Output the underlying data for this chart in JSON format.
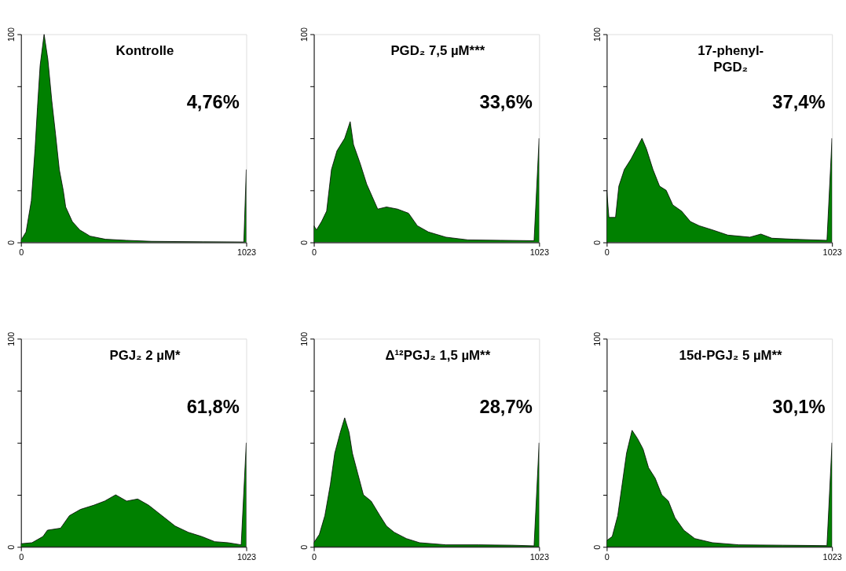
{
  "chart_data": [
    {
      "type": "area",
      "title": "Kontrolle",
      "annotations": [
        "4,76%"
      ],
      "color": "#008000",
      "x": [
        0,
        23,
        47,
        64,
        75,
        87,
        105,
        122,
        140,
        157,
        174,
        192,
        203,
        233,
        267,
        314,
        384,
        477,
        593,
        826,
        1012,
        1023
      ],
      "values": [
        1,
        5,
        20,
        45,
        65,
        85,
        100,
        88,
        68,
        52,
        35,
        25,
        17,
        10,
        6,
        3,
        1.5,
        1,
        0.5,
        0.3,
        0.2,
        35
      ],
      "xlim": [
        0,
        1023
      ],
      "xticks": [
        0,
        1023
      ],
      "ylim": [
        0,
        100
      ],
      "yticks": [
        0,
        {
          "value": 25,
          "label": null
        },
        {
          "value": 50,
          "label": null
        },
        {
          "value": 75,
          "label": null
        },
        100
      ]
    },
    {
      "type": "area",
      "title": "PGD₂ 7,5 µM***",
      "annotations": [
        "33,6%"
      ],
      "color": "#008000",
      "x": [
        0,
        12,
        35,
        58,
        80,
        105,
        140,
        165,
        180,
        210,
        240,
        265,
        290,
        330,
        380,
        430,
        470,
        520,
        600,
        700,
        850,
        1000,
        1023
      ],
      "values": [
        8,
        6,
        10,
        15,
        35,
        44,
        50,
        58,
        47,
        38,
        28,
        22,
        16,
        17,
        16,
        14,
        8,
        5,
        2.5,
        1.2,
        1,
        0.8,
        50
      ],
      "xlim": [
        0,
        1023
      ],
      "xticks": [
        0,
        1023
      ],
      "ylim": [
        0,
        100
      ],
      "yticks": [
        0,
        {
          "value": 25,
          "label": null
        },
        {
          "value": 50,
          "label": null
        },
        {
          "value": 75,
          "label": null
        },
        100
      ]
    },
    {
      "type": "area",
      "title": "17-phenyl-\nPGD₂",
      "annotations": [
        "37,4%"
      ],
      "color": "#008000",
      "x": [
        0,
        10,
        40,
        55,
        80,
        110,
        140,
        160,
        180,
        210,
        240,
        270,
        300,
        340,
        380,
        420,
        480,
        550,
        650,
        700,
        750,
        850,
        1000,
        1023
      ],
      "values": [
        25,
        12,
        12,
        27,
        35,
        40,
        46,
        50,
        45,
        35,
        27,
        25,
        18,
        15,
        10,
        8,
        6,
        3.5,
        2.5,
        4,
        2,
        1.5,
        1,
        50
      ],
      "xlim": [
        0,
        1023
      ],
      "xticks": [
        0,
        1023
      ],
      "ylim": [
        0,
        100
      ],
      "yticks": [
        0,
        {
          "value": 25,
          "label": null
        },
        {
          "value": 50,
          "label": null
        },
        {
          "value": 75,
          "label": null
        },
        100
      ]
    },
    {
      "type": "area",
      "title": "PGJ₂ 2 µM*",
      "annotations": [
        "61,8%"
      ],
      "color": "#008000",
      "x": [
        0,
        50,
        100,
        120,
        180,
        220,
        270,
        330,
        380,
        430,
        480,
        530,
        580,
        640,
        700,
        760,
        820,
        880,
        940,
        1000,
        1023
      ],
      "values": [
        1.5,
        2,
        5,
        8,
        9,
        15,
        18,
        20,
        22,
        25,
        22,
        23,
        20,
        15,
        10,
        7,
        5,
        2.5,
        2,
        1,
        50
      ],
      "xlim": [
        0,
        1023
      ],
      "xticks": [
        0,
        1023
      ],
      "ylim": [
        0,
        100
      ],
      "yticks": [
        0,
        {
          "value": 25,
          "label": null
        },
        {
          "value": 50,
          "label": null
        },
        {
          "value": 75,
          "label": null
        },
        100
      ]
    },
    {
      "type": "area",
      "title": "Δ¹²PGJ₂ 1,5 µM**",
      "annotations": [
        "28,7%"
      ],
      "color": "#008000",
      "x": [
        0,
        25,
        50,
        75,
        95,
        120,
        140,
        160,
        175,
        200,
        225,
        260,
        300,
        330,
        365,
        420,
        480,
        600,
        750,
        900,
        1000,
        1023
      ],
      "values": [
        2,
        6,
        15,
        30,
        45,
        55,
        62,
        55,
        45,
        35,
        25,
        22,
        15,
        10,
        7,
        4,
        2,
        1,
        1,
        0.8,
        0.5,
        50
      ],
      "xlim": [
        0,
        1023
      ],
      "xticks": [
        0,
        1023
      ],
      "ylim": [
        0,
        100
      ],
      "yticks": [
        0,
        {
          "value": 25,
          "label": null
        },
        {
          "value": 50,
          "label": null
        },
        {
          "value": 75,
          "label": null
        },
        100
      ]
    },
    {
      "type": "area",
      "title": "15d-PGJ₂ 5 µM**",
      "annotations": [
        "30,1%"
      ],
      "color": "#008000",
      "x": [
        0,
        25,
        50,
        70,
        90,
        115,
        140,
        165,
        190,
        220,
        250,
        280,
        310,
        350,
        400,
        480,
        600,
        800,
        1000,
        1023
      ],
      "values": [
        3,
        5,
        15,
        30,
        45,
        56,
        52,
        47,
        38,
        33,
        25,
        22,
        14,
        8,
        4,
        2,
        1,
        0.8,
        0.6,
        50
      ],
      "xlim": [
        0,
        1023
      ],
      "xticks": [
        0,
        1023
      ],
      "ylim": [
        0,
        100
      ],
      "yticks": [
        0,
        {
          "value": 25,
          "label": null
        },
        {
          "value": 50,
          "label": null
        },
        {
          "value": 75,
          "label": null
        },
        100
      ]
    }
  ]
}
